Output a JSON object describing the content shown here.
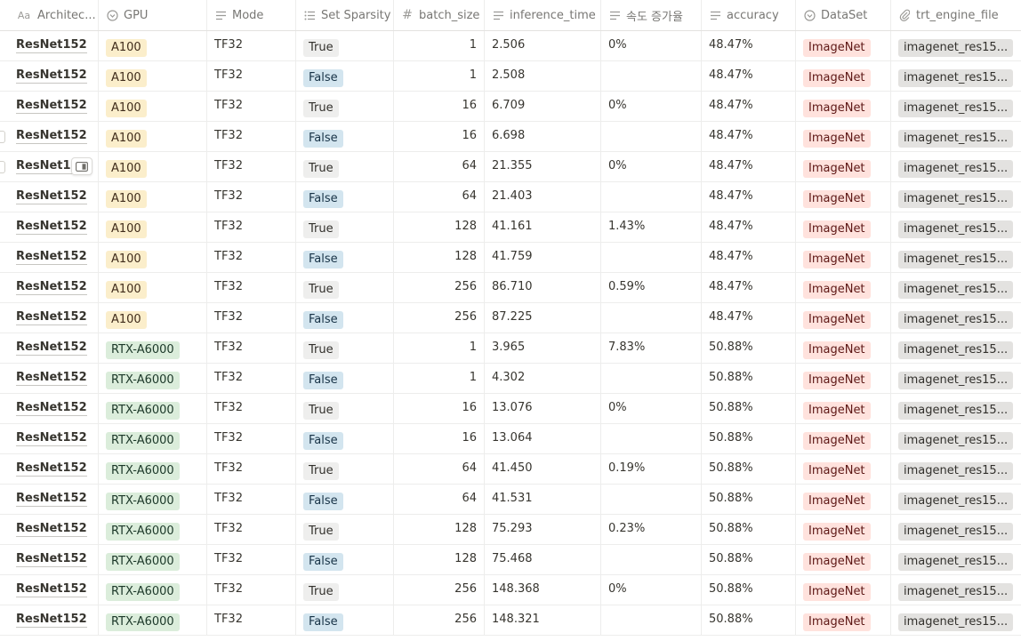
{
  "columns": {
    "architecture": {
      "label": "Architec...",
      "icon": "title-aa-icon"
    },
    "gpu": {
      "label": "GPU",
      "icon": "select-icon"
    },
    "mode": {
      "label": "Mode",
      "icon": "text-icon"
    },
    "sparsity": {
      "label": "Set Sparsity",
      "icon": "multi-select-icon"
    },
    "batch_size": {
      "label": "batch_size",
      "icon": "number-icon"
    },
    "inference_time": {
      "label": "inference_time",
      "icon": "text-icon"
    },
    "speed_gain": {
      "label": "속도 증가율",
      "icon": "text-icon"
    },
    "accuracy": {
      "label": "accuracy",
      "icon": "text-icon"
    },
    "dataset": {
      "label": "DataSet",
      "icon": "select-icon"
    },
    "trt_engine_file": {
      "label": "trt_engine_file",
      "icon": "file-icon"
    }
  },
  "colors": {
    "A100": "#fbeecb",
    "RTX-A6000": "#dbeddb",
    "True": "#eeeeed",
    "False": "#d3e5ef",
    "ImageNet": "#ffe2dd",
    "file": "#e3e2e0"
  },
  "rows": [
    {
      "architecture": "ResNet152",
      "gpu": "A100",
      "mode": "TF32",
      "sparsity": "True",
      "batch_size": "1",
      "inference_time": "2.506",
      "speed_gain": "0%",
      "accuracy": "48.47%",
      "dataset": "ImageNet",
      "trt_engine_file": "imagenet_res15..."
    },
    {
      "architecture": "ResNet152",
      "gpu": "A100",
      "mode": "TF32",
      "sparsity": "False",
      "batch_size": "1",
      "inference_time": "2.508",
      "speed_gain": "",
      "accuracy": "48.47%",
      "dataset": "ImageNet",
      "trt_engine_file": "imagenet_res15..."
    },
    {
      "architecture": "ResNet152",
      "gpu": "A100",
      "mode": "TF32",
      "sparsity": "True",
      "batch_size": "16",
      "inference_time": "6.709",
      "speed_gain": "0%",
      "accuracy": "48.47%",
      "dataset": "ImageNet",
      "trt_engine_file": "imagenet_res15..."
    },
    {
      "architecture": "ResNet152",
      "gpu": "A100",
      "mode": "TF32",
      "sparsity": "False",
      "batch_size": "16",
      "inference_time": "6.698",
      "speed_gain": "",
      "accuracy": "48.47%",
      "dataset": "ImageNet",
      "trt_engine_file": "imagenet_res15..."
    },
    {
      "architecture": "ResNet15",
      "gpu": "A100",
      "mode": "TF32",
      "sparsity": "True",
      "batch_size": "64",
      "inference_time": "21.355",
      "speed_gain": "0%",
      "accuracy": "48.47%",
      "dataset": "ImageNet",
      "trt_engine_file": "imagenet_res15..."
    },
    {
      "architecture": "ResNet152",
      "gpu": "A100",
      "mode": "TF32",
      "sparsity": "False",
      "batch_size": "64",
      "inference_time": "21.403",
      "speed_gain": "",
      "accuracy": "48.47%",
      "dataset": "ImageNet",
      "trt_engine_file": "imagenet_res15..."
    },
    {
      "architecture": "ResNet152",
      "gpu": "A100",
      "mode": "TF32",
      "sparsity": "True",
      "batch_size": "128",
      "inference_time": "41.161",
      "speed_gain": "1.43%",
      "accuracy": "48.47%",
      "dataset": "ImageNet",
      "trt_engine_file": "imagenet_res15..."
    },
    {
      "architecture": "ResNet152",
      "gpu": "A100",
      "mode": "TF32",
      "sparsity": "False",
      "batch_size": "128",
      "inference_time": "41.759",
      "speed_gain": "",
      "accuracy": "48.47%",
      "dataset": "ImageNet",
      "trt_engine_file": "imagenet_res15..."
    },
    {
      "architecture": "ResNet152",
      "gpu": "A100",
      "mode": "TF32",
      "sparsity": "True",
      "batch_size": "256",
      "inference_time": "86.710",
      "speed_gain": "0.59%",
      "accuracy": "48.47%",
      "dataset": "ImageNet",
      "trt_engine_file": "imagenet_res15..."
    },
    {
      "architecture": "ResNet152",
      "gpu": "A100",
      "mode": "TF32",
      "sparsity": "False",
      "batch_size": "256",
      "inference_time": "87.225",
      "speed_gain": "",
      "accuracy": "48.47%",
      "dataset": "ImageNet",
      "trt_engine_file": "imagenet_res15..."
    },
    {
      "architecture": "ResNet152",
      "gpu": "RTX-A6000",
      "mode": "TF32",
      "sparsity": "True",
      "batch_size": "1",
      "inference_time": "3.965",
      "speed_gain": "7.83%",
      "accuracy": "50.88%",
      "dataset": "ImageNet",
      "trt_engine_file": "imagenet_res15..."
    },
    {
      "architecture": "ResNet152",
      "gpu": "RTX-A6000",
      "mode": "TF32",
      "sparsity": "False",
      "batch_size": "1",
      "inference_time": "4.302",
      "speed_gain": "",
      "accuracy": "50.88%",
      "dataset": "ImageNet",
      "trt_engine_file": "imagenet_res15..."
    },
    {
      "architecture": "ResNet152",
      "gpu": "RTX-A6000",
      "mode": "TF32",
      "sparsity": "True",
      "batch_size": "16",
      "inference_time": "13.076",
      "speed_gain": "0%",
      "accuracy": "50.88%",
      "dataset": "ImageNet",
      "trt_engine_file": "imagenet_res15..."
    },
    {
      "architecture": "ResNet152",
      "gpu": "RTX-A6000",
      "mode": "TF32",
      "sparsity": "False",
      "batch_size": "16",
      "inference_time": "13.064",
      "speed_gain": "",
      "accuracy": "50.88%",
      "dataset": "ImageNet",
      "trt_engine_file": "imagenet_res15..."
    },
    {
      "architecture": "ResNet152",
      "gpu": "RTX-A6000",
      "mode": "TF32",
      "sparsity": "True",
      "batch_size": "64",
      "inference_time": "41.450",
      "speed_gain": "0.19%",
      "accuracy": "50.88%",
      "dataset": "ImageNet",
      "trt_engine_file": "imagenet_res15..."
    },
    {
      "architecture": "ResNet152",
      "gpu": "RTX-A6000",
      "mode": "TF32",
      "sparsity": "False",
      "batch_size": "64",
      "inference_time": "41.531",
      "speed_gain": "",
      "accuracy": "50.88%",
      "dataset": "ImageNet",
      "trt_engine_file": "imagenet_res15..."
    },
    {
      "architecture": "ResNet152",
      "gpu": "RTX-A6000",
      "mode": "TF32",
      "sparsity": "True",
      "batch_size": "128",
      "inference_time": "75.293",
      "speed_gain": "0.23%",
      "accuracy": "50.88%",
      "dataset": "ImageNet",
      "trt_engine_file": "imagenet_res15..."
    },
    {
      "architecture": "ResNet152",
      "gpu": "RTX-A6000",
      "mode": "TF32",
      "sparsity": "False",
      "batch_size": "128",
      "inference_time": "75.468",
      "speed_gain": "",
      "accuracy": "50.88%",
      "dataset": "ImageNet",
      "trt_engine_file": "imagenet_res15..."
    },
    {
      "architecture": "ResNet152",
      "gpu": "RTX-A6000",
      "mode": "TF32",
      "sparsity": "True",
      "batch_size": "256",
      "inference_time": "148.368",
      "speed_gain": "0%",
      "accuracy": "50.88%",
      "dataset": "ImageNet",
      "trt_engine_file": "imagenet_res15..."
    },
    {
      "architecture": "ResNet152",
      "gpu": "RTX-A6000",
      "mode": "TF32",
      "sparsity": "False",
      "batch_size": "256",
      "inference_time": "148.321",
      "speed_gain": "",
      "accuracy": "50.88%",
      "dataset": "ImageNet",
      "trt_engine_file": "imagenet_res15..."
    }
  ]
}
